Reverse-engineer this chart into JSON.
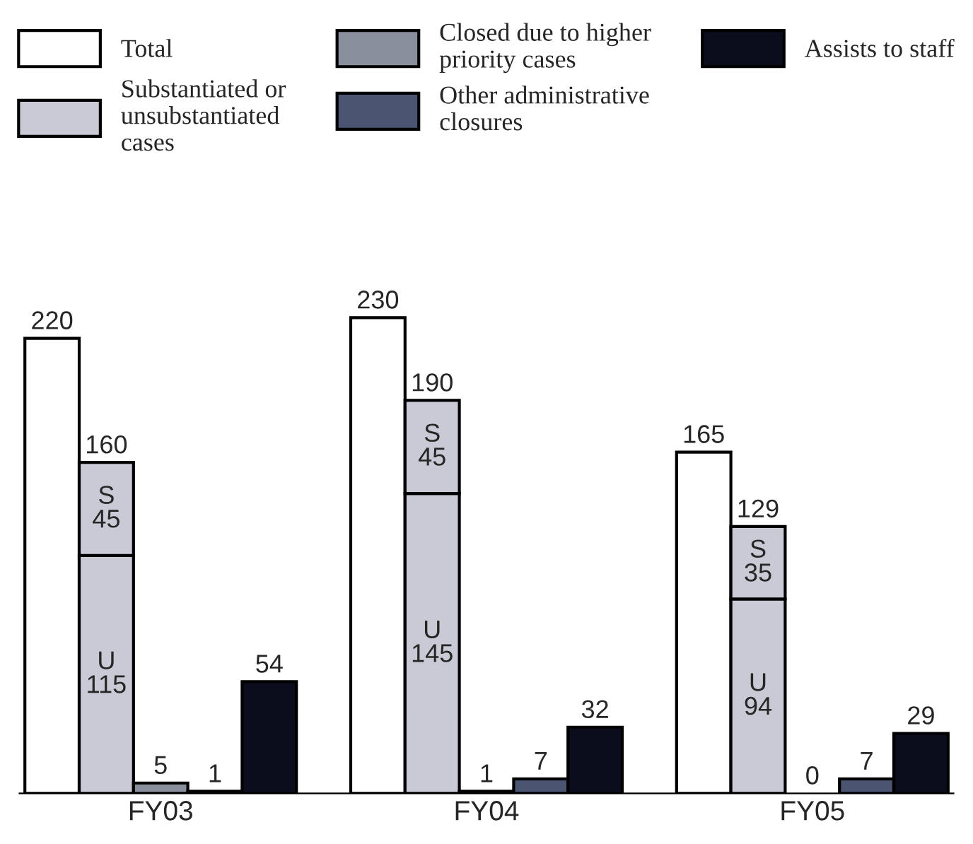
{
  "chart_data": {
    "type": "bar",
    "stacked": true,
    "legend": "top",
    "categories": [
      null,
      null,
      "FY03",
      null,
      null,
      null,
      null,
      null,
      "FY04",
      null,
      null,
      null,
      null,
      null,
      "FY05",
      null,
      null
    ],
    "series": [
      {
        "name": "Total",
        "color": "#ffffff",
        "values": [
          220,
          null,
          null,
          null,
          null,
          null,
          230,
          null,
          null,
          null,
          null,
          null,
          165,
          null,
          null,
          null,
          null
        ],
        "value_labels": [
          "220",
          null,
          null,
          null,
          null,
          null,
          "230",
          null,
          null,
          null,
          null,
          null,
          "165",
          null,
          null,
          null,
          null
        ]
      },
      {
        "name": "Substantiated or\nunsubstantiated\ncases",
        "color": "#c9cad6",
        "values": [
          null,
          115,
          null,
          null,
          null,
          null,
          null,
          145,
          null,
          null,
          null,
          null,
          null,
          94,
          null,
          null,
          null
        ],
        "value_labels": [
          null,
          "U\n115",
          null,
          null,
          null,
          null,
          null,
          "U\n145",
          null,
          null,
          null,
          null,
          null,
          "U\n94",
          null,
          null,
          null
        ]
      },
      {
        "color": "#c9cad6",
        "values": [
          null,
          45,
          null,
          null,
          null,
          null,
          null,
          45,
          null,
          null,
          null,
          null,
          null,
          35,
          null,
          null,
          null
        ],
        "value_labels": [
          null,
          "S\n45",
          null,
          null,
          null,
          null,
          null,
          "S\n45",
          null,
          null,
          null,
          null,
          null,
          "S\n35",
          null,
          null,
          null
        ]
      },
      {
        "name": "Closed due to higher\npriority cases",
        "color": "#8a8f9e",
        "values": [
          null,
          null,
          5,
          null,
          null,
          null,
          null,
          null,
          1,
          null,
          null,
          null,
          null,
          null,
          0,
          null,
          null
        ],
        "value_labels": [
          null,
          null,
          "5",
          null,
          null,
          null,
          null,
          null,
          "1",
          null,
          null,
          null,
          null,
          null,
          "0",
          null,
          null
        ]
      },
      {
        "name": "Other administrative\nclosures",
        "color": "#4b5470",
        "values": [
          null,
          null,
          null,
          1,
          null,
          null,
          null,
          null,
          null,
          7,
          null,
          null,
          null,
          null,
          null,
          7,
          null
        ],
        "value_labels": [
          null,
          null,
          null,
          "1",
          null,
          null,
          null,
          null,
          null,
          "7",
          null,
          null,
          null,
          null,
          null,
          "7",
          null
        ]
      },
      {
        "name": "Assists to staff",
        "color": "#0b0c1c",
        "values": [
          null,
          null,
          null,
          null,
          54,
          null,
          null,
          null,
          null,
          null,
          32,
          null,
          null,
          null,
          null,
          null,
          29
        ],
        "value_labels": [
          null,
          null,
          null,
          null,
          "54",
          null,
          null,
          null,
          null,
          null,
          "32",
          null,
          null,
          null,
          null,
          null,
          "29"
        ]
      }
    ],
    "totals": [
      null,
      "160",
      null,
      null,
      null,
      null,
      null,
      "190",
      null,
      null,
      null,
      null,
      null,
      "129",
      null,
      null,
      null
    ]
  }
}
